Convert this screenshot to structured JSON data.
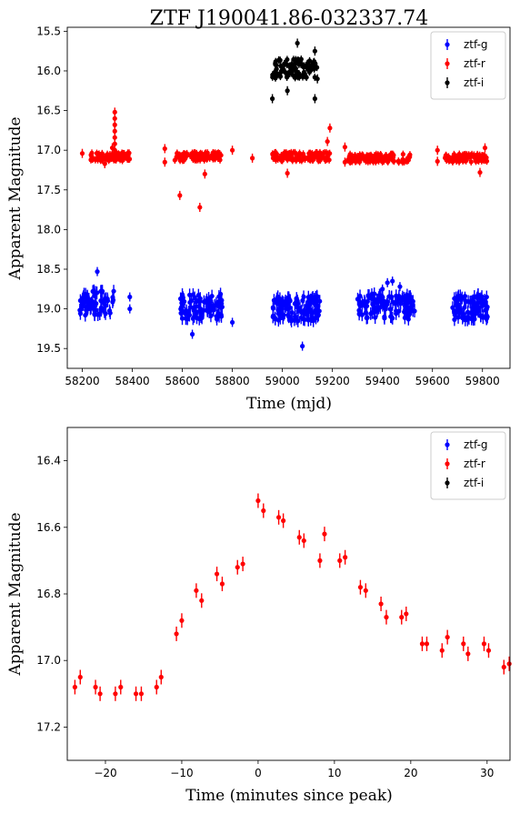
{
  "chart_data": [
    {
      "type": "scatter",
      "title": "ZTF J190041.86-032337.74",
      "xlabel": "Time (mjd)",
      "ylabel": "Apparent Magnitude",
      "xlim": [
        58140,
        59910
      ],
      "ylim": [
        19.75,
        15.45
      ],
      "y_inverted": true,
      "xticks": [
        58200,
        58400,
        58600,
        58800,
        59000,
        59200,
        59400,
        59600,
        59800
      ],
      "yticks": [
        15.5,
        16.0,
        16.5,
        17.0,
        17.5,
        18.0,
        18.5,
        19.0,
        19.5
      ],
      "legend_position": "top-right",
      "series": [
        {
          "name": "ztf-g",
          "color": "#0000ff",
          "segments": [
            {
              "x0": 58190,
              "x1": 58330,
              "y": 18.93,
              "count": 70
            },
            {
              "x0": 58590,
              "x1": 58760,
              "y": 18.97,
              "count": 90
            },
            {
              "x0": 58960,
              "x1": 59150,
              "y": 19.0,
              "count": 110
            },
            {
              "x0": 59300,
              "x1": 59530,
              "y": 18.97,
              "count": 110
            },
            {
              "x0": 59680,
              "x1": 59820,
              "y": 18.98,
              "count": 80
            }
          ],
          "extra_points": [
            {
              "x": 58260,
              "y": 18.53
            },
            {
              "x": 58390,
              "y": 18.85
            },
            {
              "x": 58390,
              "y": 19.0
            },
            {
              "x": 58640,
              "y": 19.32
            },
            {
              "x": 58800,
              "y": 19.17
            },
            {
              "x": 59080,
              "y": 19.47
            },
            {
              "x": 59400,
              "y": 18.75
            },
            {
              "x": 59420,
              "y": 18.67
            },
            {
              "x": 59440,
              "y": 18.65
            },
            {
              "x": 59470,
              "y": 18.72
            },
            {
              "x": 59730,
              "y": 18.84
            }
          ]
        },
        {
          "name": "ztf-r",
          "color": "#ff0000",
          "segments": [
            {
              "x0": 58230,
              "x1": 58390,
              "y": 17.08,
              "count": 70
            },
            {
              "x0": 58570,
              "x1": 58760,
              "y": 17.08,
              "count": 90
            },
            {
              "x0": 58960,
              "x1": 59190,
              "y": 17.08,
              "count": 110
            },
            {
              "x0": 59260,
              "x1": 59510,
              "y": 17.1,
              "count": 110
            },
            {
              "x0": 59650,
              "x1": 59820,
              "y": 17.1,
              "count": 80
            }
          ],
          "extra_points": [
            {
              "x": 58200,
              "y": 17.04
            },
            {
              "x": 58330,
              "y": 16.52
            },
            {
              "x": 58330,
              "y": 16.6
            },
            {
              "x": 58330,
              "y": 16.68
            },
            {
              "x": 58330,
              "y": 16.76
            },
            {
              "x": 58330,
              "y": 16.84
            },
            {
              "x": 58330,
              "y": 16.92
            },
            {
              "x": 58330,
              "y": 17.0
            },
            {
              "x": 58320,
              "y": 16.97
            },
            {
              "x": 58290,
              "y": 17.17
            },
            {
              "x": 58530,
              "y": 16.98
            },
            {
              "x": 58530,
              "y": 17.15
            },
            {
              "x": 58590,
              "y": 17.57
            },
            {
              "x": 58670,
              "y": 17.72
            },
            {
              "x": 58690,
              "y": 17.3
            },
            {
              "x": 58800,
              "y": 17.0
            },
            {
              "x": 58880,
              "y": 17.1
            },
            {
              "x": 59020,
              "y": 17.29
            },
            {
              "x": 59180,
              "y": 16.89
            },
            {
              "x": 59190,
              "y": 16.72
            },
            {
              "x": 59250,
              "y": 17.15
            },
            {
              "x": 59250,
              "y": 16.96
            },
            {
              "x": 59620,
              "y": 17.0
            },
            {
              "x": 59620,
              "y": 17.14
            },
            {
              "x": 59790,
              "y": 17.28
            },
            {
              "x": 59810,
              "y": 16.97
            }
          ]
        },
        {
          "name": "ztf-i",
          "color": "#000000",
          "segments": [
            {
              "x0": 58960,
              "x1": 59140,
              "y": 15.97,
              "count": 100
            }
          ],
          "extra_points": [
            {
              "x": 58960,
              "y": 16.35
            },
            {
              "x": 59020,
              "y": 16.25
            },
            {
              "x": 59060,
              "y": 15.65
            },
            {
              "x": 59130,
              "y": 15.75
            },
            {
              "x": 59130,
              "y": 16.35
            },
            {
              "x": 59140,
              "y": 16.1
            }
          ]
        }
      ]
    },
    {
      "type": "scatter",
      "title": "",
      "xlabel": "Time (minutes since peak)",
      "ylabel": "Apparent Magnitude",
      "xlim": [
        -25,
        33
      ],
      "ylim": [
        17.3,
        16.3
      ],
      "y_inverted": true,
      "xticks": [
        -20,
        -10,
        0,
        10,
        20,
        30
      ],
      "yticks": [
        16.4,
        16.6,
        16.8,
        17.0,
        17.2
      ],
      "legend_position": "top-right",
      "series": [
        {
          "name": "ztf-g",
          "color": "#0000ff",
          "x": [],
          "y": []
        },
        {
          "name": "ztf-r",
          "color": "#ff0000",
          "x": [
            -24,
            -23.3,
            -21.3,
            -20.7,
            -18.7,
            -18,
            -16,
            -15.3,
            -13.3,
            -12.7,
            -10.7,
            -10,
            -8.1,
            -7.4,
            -5.4,
            -4.7,
            -2.7,
            -2,
            0,
            0.7,
            2.7,
            3.3,
            5.4,
            6,
            8.1,
            8.7,
            10.7,
            11.4,
            13.4,
            14.1,
            16.1,
            16.8,
            18.8,
            19.4,
            21.5,
            22.1,
            24.1,
            24.8,
            26.9,
            27.5,
            29.6,
            30.2,
            32.2,
            32.9
          ],
          "y": [
            17.08,
            17.05,
            17.08,
            17.1,
            17.1,
            17.08,
            17.1,
            17.1,
            17.08,
            17.05,
            16.92,
            16.88,
            16.79,
            16.82,
            16.74,
            16.77,
            16.72,
            16.71,
            16.52,
            16.55,
            16.57,
            16.58,
            16.63,
            16.64,
            16.7,
            16.62,
            16.7,
            16.69,
            16.78,
            16.79,
            16.83,
            16.87,
            16.87,
            16.86,
            16.95,
            16.95,
            16.97,
            16.93,
            16.95,
            16.98,
            16.95,
            16.97,
            17.02,
            17.01
          ]
        },
        {
          "name": "ztf-i",
          "color": "#000000",
          "x": [],
          "y": []
        }
      ]
    }
  ]
}
